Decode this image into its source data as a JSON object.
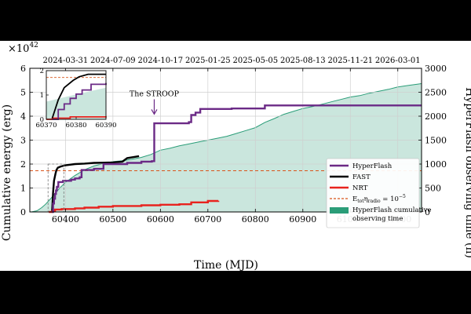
{
  "chart_data": {
    "type": "line",
    "xlabel": "Time (MJD)",
    "ylabel": "Cumulative energy (erg)",
    "y_multiplier": "×10",
    "y_multiplier_exp": "42",
    "y2label": "HyperFlash observing time (h)",
    "xlim": [
      60325,
      61150
    ],
    "ylim": [
      0,
      6
    ],
    "y2lim": [
      0,
      3000
    ],
    "x_ticks": [
      "60400",
      "60500",
      "60600",
      "60700",
      "60800",
      "60900",
      "61000",
      "61100"
    ],
    "y_ticks": [
      "0",
      "1",
      "2",
      "3",
      "4",
      "5",
      "6"
    ],
    "y2_ticks": [
      "0",
      "500",
      "1000",
      "1500",
      "2000",
      "2500",
      "3000"
    ],
    "top_date_ticks": [
      {
        "mjd": 60400,
        "label": "2024-03-31"
      },
      {
        "mjd": 60500,
        "label": "2024-07-09"
      },
      {
        "mjd": 60600,
        "label": "2024-10-17"
      },
      {
        "mjd": 60700,
        "label": "2025-01-25"
      },
      {
        "mjd": 60800,
        "label": "2025-05-05"
      },
      {
        "mjd": 60900,
        "label": "2025-08-13"
      },
      {
        "mjd": 61000,
        "label": "2025-11-21"
      },
      {
        "mjd": 61100,
        "label": "2026-03-01"
      }
    ],
    "grid": true,
    "legend_position": "right",
    "series": [
      {
        "name": "HyperFlash",
        "color": "#6b2a86",
        "step": true,
        "points": [
          [
            60372,
            0.0
          ],
          [
            60374,
            0.35
          ],
          [
            60376,
            0.55
          ],
          [
            60378,
            0.75
          ],
          [
            60380,
            0.9
          ],
          [
            60382,
            1.05
          ],
          [
            60385,
            1.25
          ],
          [
            60390,
            1.25
          ],
          [
            60395,
            1.3
          ],
          [
            60412,
            1.35
          ],
          [
            60420,
            1.4
          ],
          [
            60430,
            1.45
          ],
          [
            60434,
            1.75
          ],
          [
            60460,
            1.8
          ],
          [
            60480,
            2.0
          ],
          [
            60530,
            2.05
          ],
          [
            60560,
            2.1
          ],
          [
            60582,
            2.12
          ],
          [
            60587,
            3.7
          ],
          [
            60660,
            3.75
          ],
          [
            60665,
            4.05
          ],
          [
            60674,
            4.15
          ],
          [
            60684,
            4.3
          ],
          [
            60750,
            4.32
          ],
          [
            60820,
            4.45
          ],
          [
            61150,
            4.45
          ]
        ]
      },
      {
        "name": "FAST",
        "color": "#000000",
        "step": false,
        "points": [
          [
            60372,
            0.05
          ],
          [
            60374,
            0.8
          ],
          [
            60376,
            1.3
          ],
          [
            60379,
            1.6
          ],
          [
            60381,
            1.75
          ],
          [
            60384,
            1.85
          ],
          [
            60390,
            1.9
          ],
          [
            60400,
            1.95
          ],
          [
            60420,
            2.0
          ],
          [
            60440,
            2.02
          ],
          [
            60460,
            2.05
          ],
          [
            60500,
            2.07
          ],
          [
            60520,
            2.1
          ],
          [
            60530,
            2.25
          ],
          [
            60545,
            2.3
          ],
          [
            60555,
            2.33
          ]
        ]
      },
      {
        "name": "NRT",
        "color": "#e8231e",
        "step": true,
        "points": [
          [
            60365,
            0.0
          ],
          [
            60372,
            0.05
          ],
          [
            60378,
            0.1
          ],
          [
            60392,
            0.12
          ],
          [
            60420,
            0.15
          ],
          [
            60440,
            0.18
          ],
          [
            60470,
            0.22
          ],
          [
            60500,
            0.25
          ],
          [
            60560,
            0.28
          ],
          [
            60600,
            0.3
          ],
          [
            60640,
            0.32
          ],
          [
            60665,
            0.4
          ],
          [
            60700,
            0.46
          ],
          [
            60722,
            0.47
          ]
        ]
      }
    ],
    "threshold": {
      "name_main": "E",
      "name_sub": "tot",
      "name_rest": "η",
      "name_rest_sub": "radio",
      "name_tail": " = 10",
      "name_exp": "−5",
      "y": 1.72,
      "color": "#d9541a"
    },
    "area": {
      "name_line1": "HyperFlash cumulative",
      "name_line2": "observing time",
      "color": "#2a9d78",
      "axis": "right",
      "points": [
        [
          60325,
          0
        ],
        [
          60330,
          5
        ],
        [
          60340,
          25
        ],
        [
          60350,
          90
        ],
        [
          60358,
          160
        ],
        [
          60370,
          290
        ],
        [
          60380,
          410
        ],
        [
          60390,
          520
        ],
        [
          60400,
          620
        ],
        [
          60420,
          760
        ],
        [
          60440,
          880
        ],
        [
          60460,
          960
        ],
        [
          60480,
          1010
        ],
        [
          60500,
          1050
        ],
        [
          60520,
          1070
        ],
        [
          60540,
          1100
        ],
        [
          60560,
          1140
        ],
        [
          60580,
          1200
        ],
        [
          60600,
          1290
        ],
        [
          60620,
          1330
        ],
        [
          60640,
          1380
        ],
        [
          60660,
          1420
        ],
        [
          60680,
          1460
        ],
        [
          60700,
          1500
        ],
        [
          60720,
          1540
        ],
        [
          60740,
          1580
        ],
        [
          60760,
          1640
        ],
        [
          60780,
          1700
        ],
        [
          60800,
          1760
        ],
        [
          60820,
          1870
        ],
        [
          60840,
          1950
        ],
        [
          60860,
          2040
        ],
        [
          60880,
          2100
        ],
        [
          60900,
          2160
        ],
        [
          60920,
          2200
        ],
        [
          60940,
          2250
        ],
        [
          60960,
          2300
        ],
        [
          60980,
          2350
        ],
        [
          61000,
          2400
        ],
        [
          61020,
          2430
        ],
        [
          61040,
          2480
        ],
        [
          61060,
          2520
        ],
        [
          61080,
          2560
        ],
        [
          61100,
          2610
        ],
        [
          61120,
          2640
        ],
        [
          61150,
          2680
        ]
      ]
    },
    "annotation": {
      "text": "The STROOP",
      "x": 60587,
      "y": 4.05
    },
    "inset": {
      "xlim": [
        60370,
        60390
      ],
      "ylim": [
        0,
        2
      ],
      "x_ticks": [
        "60370",
        "60380",
        "60390"
      ],
      "y_ticks": [
        "0",
        "1",
        "2"
      ],
      "main_box": {
        "x": [
          60370,
          60390
        ],
        "y": [
          0,
          2
        ]
      }
    }
  }
}
